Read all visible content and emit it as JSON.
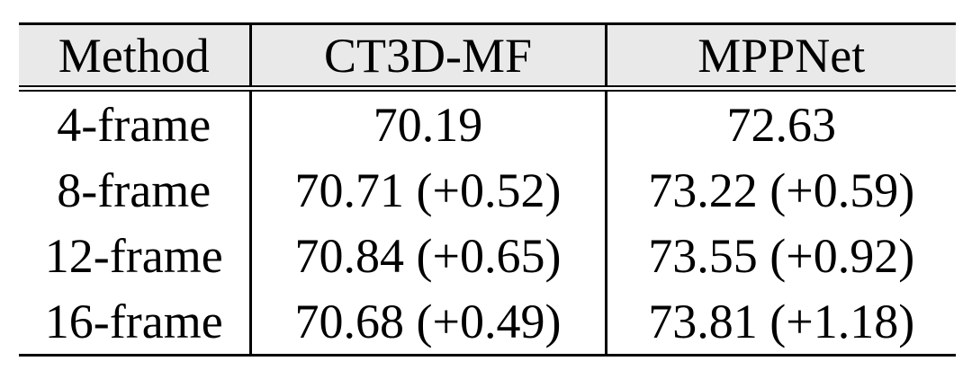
{
  "table": {
    "header": [
      "Method",
      "CT3D-MF",
      "MPPNet"
    ],
    "rows": [
      [
        "4-frame",
        "70.19",
        "72.63"
      ],
      [
        "8-frame",
        "70.71 (+0.52)",
        "73.22 (+0.59)"
      ],
      [
        "12-frame",
        "70.84 (+0.65)",
        "73.55 (+0.92)"
      ],
      [
        "16-frame",
        "70.68 (+0.49)",
        "73.81 (+1.18)"
      ]
    ],
    "style": {
      "header_bg": "#e9e9e9",
      "border_color": "#000000",
      "text_color": "#000000"
    }
  },
  "chart_data": {
    "type": "table",
    "title": "",
    "columns": [
      "Method",
      "CT3D-MF",
      "MPPNet"
    ],
    "categories": [
      "4-frame",
      "8-frame",
      "12-frame",
      "16-frame"
    ],
    "series": [
      {
        "name": "CT3D-MF",
        "values": [
          70.19,
          70.71,
          70.84,
          70.68
        ],
        "deltas": [
          null,
          0.52,
          0.65,
          0.49
        ]
      },
      {
        "name": "MPPNet",
        "values": [
          72.63,
          73.22,
          73.55,
          73.81
        ],
        "deltas": [
          null,
          0.59,
          0.92,
          1.18
        ]
      }
    ]
  }
}
